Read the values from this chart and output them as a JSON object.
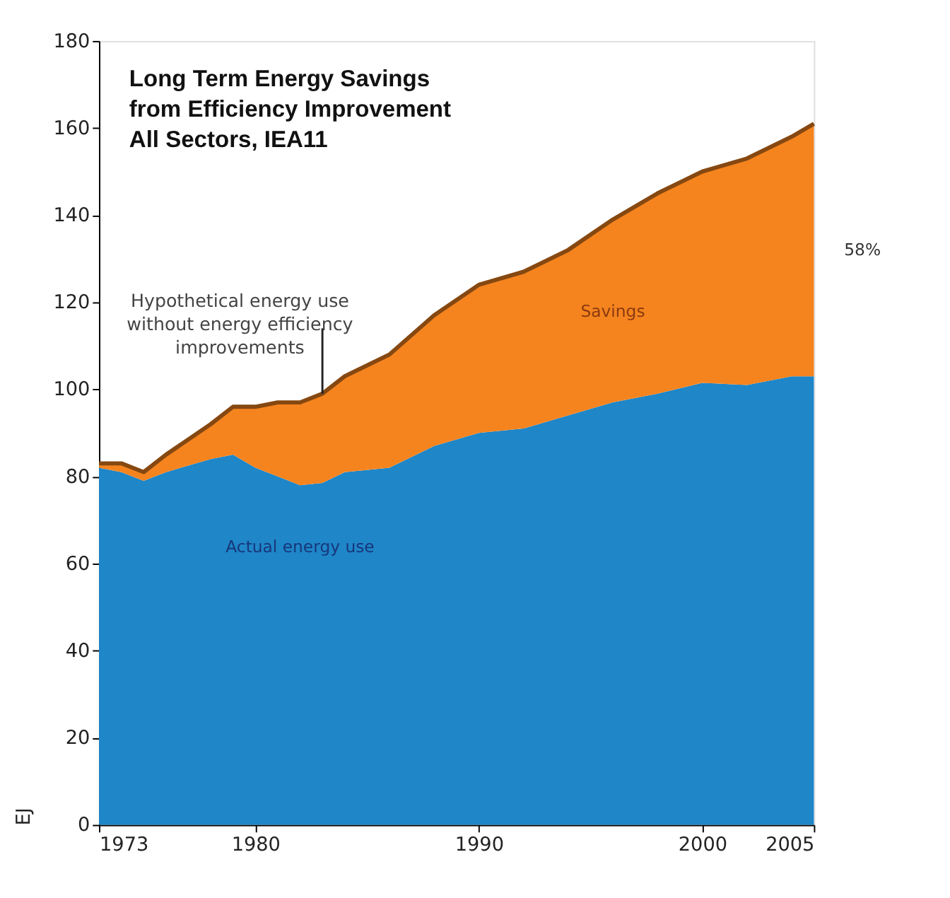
{
  "chart_data": {
    "type": "area",
    "title": "Long Term Energy Savings\nfrom Efficiency Improvement\nAll Sectors, IEA11",
    "ylabel": "EJ",
    "stacked": true,
    "x": [
      1973,
      1974,
      1975,
      1976,
      1978,
      1979,
      1980,
      1981,
      1982,
      1983,
      1984,
      1986,
      1988,
      1990,
      1992,
      1994,
      1996,
      1998,
      2000,
      2002,
      2004,
      2005
    ],
    "series": [
      {
        "name": "Actual energy use",
        "color": "#1f86c8",
        "values": [
          82,
          81,
          79,
          81,
          84,
          85,
          82,
          80,
          78,
          78.5,
          81,
          82,
          87,
          90,
          91,
          94,
          97,
          99,
          101.5,
          101,
          103,
          103
        ]
      },
      {
        "name": "Savings",
        "color": "#f5841f",
        "values": [
          1,
          2,
          2,
          4,
          8,
          11,
          14,
          17,
          19,
          20.5,
          22,
          26,
          30,
          34,
          36,
          38,
          42,
          46,
          48.5,
          52,
          55,
          58
        ]
      }
    ],
    "annotations": [
      {
        "text": "Hypothetical energy use\nwithout energy efficiency\nimprovements",
        "x": 1983,
        "y": 99
      },
      {
        "text": "58%",
        "x": 2005,
        "y": 132
      }
    ],
    "xlim": [
      1973,
      2005
    ],
    "xticks": [
      1973,
      1980,
      1990,
      2000,
      2005
    ],
    "ylim": [
      0,
      180
    ],
    "yticks": [
      0,
      20,
      40,
      60,
      80,
      100,
      120,
      140,
      160,
      180
    ],
    "grid": false
  }
}
